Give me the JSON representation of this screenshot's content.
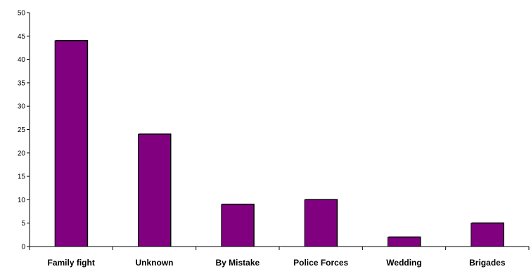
{
  "chart_data": {
    "type": "bar",
    "categories": [
      "Family fight",
      "Unknown",
      "By Mistake",
      "Police Forces",
      "Wedding",
      "Brigades"
    ],
    "values": [
      44,
      24,
      9,
      10,
      2,
      5
    ],
    "ylim": [
      0,
      50
    ],
    "ytick_step": 5,
    "yticks": [
      "0",
      "5",
      "10",
      "15",
      "20",
      "25",
      "30",
      "35",
      "40",
      "45",
      "50"
    ],
    "title": "",
    "xlabel": "",
    "ylabel": "",
    "grid": false,
    "legend": "none",
    "bar_color": "#800080",
    "bar_edge_color": "#000000"
  }
}
